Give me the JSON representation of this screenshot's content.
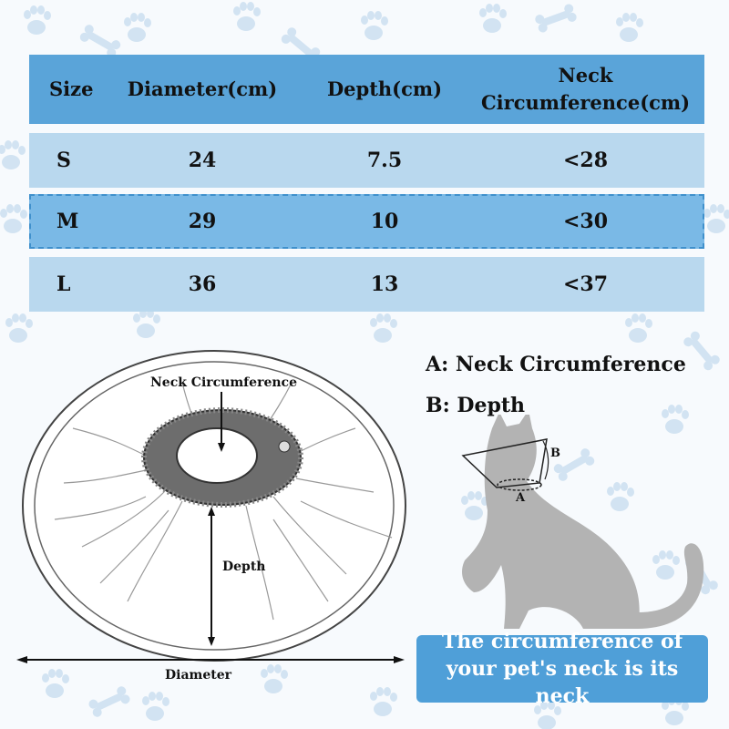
{
  "size_table": {
    "headers": [
      "Size",
      "Diameter(cm)",
      "Depth(cm)",
      "Neck Circumference(cm)"
    ],
    "rows": [
      [
        "S",
        "24",
        "7.5",
        "<28"
      ],
      [
        "M",
        "29",
        "10",
        "<30"
      ],
      [
        "L",
        "36",
        "13",
        "<37"
      ]
    ]
  },
  "cone_diagram": {
    "neck_label": "Neck Circumference",
    "depth_label": "Depth",
    "diameter_label": "Diameter"
  },
  "legend": {
    "a": "A: Neck Circumference",
    "b": "B: Depth"
  },
  "cat_figure": {
    "a_label": "A",
    "b_label": "B"
  },
  "note": "The circumference of your pet's neck is its neck",
  "colors": {
    "header": "#5aa4d9",
    "row_light": "#b9d8ee",
    "row_highlight": "#7ab9e6",
    "note_box": "#4f9fd8",
    "paw_pattern": "#cfe1f1",
    "cat_silhouette": "#b3b3b3"
  },
  "icons": [
    "paw-print-icon",
    "bone-icon",
    "cone-collar-icon",
    "cat-silhouette-icon"
  ]
}
